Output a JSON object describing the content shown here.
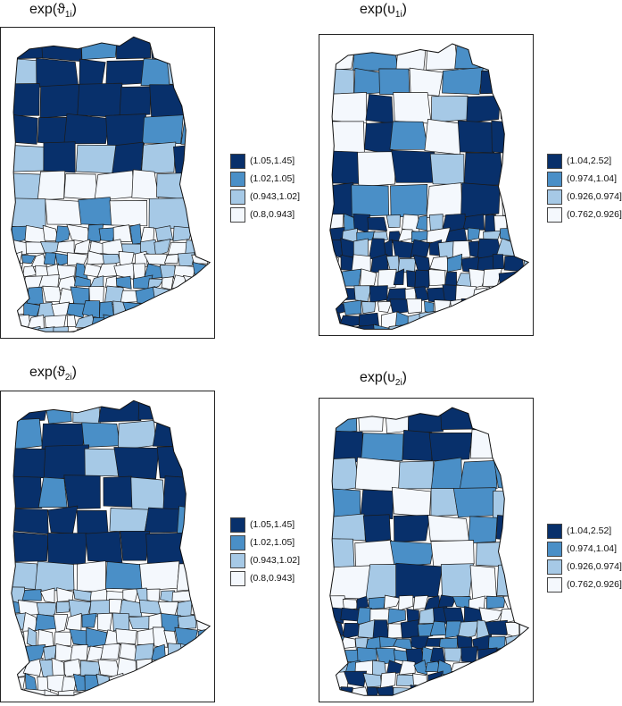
{
  "panels": [
    {
      "title": {
        "prefix": "exp(",
        "symbol": "ϑ",
        "subscript": "1i",
        "suffix": ")"
      },
      "legend": [
        {
          "label": "(1.05,1.45]",
          "color": "#08306b"
        },
        {
          "label": "(1.02,1.05]",
          "color": "#4a8fc7"
        },
        {
          "label": "(0.943,1.02]",
          "color": "#a6c9e6"
        },
        {
          "label": "(0.8,0.943]",
          "color": "#f4f8fd"
        }
      ]
    },
    {
      "title": {
        "prefix": "exp(",
        "symbol": "υ",
        "subscript": "1i",
        "suffix": ")"
      },
      "legend": [
        {
          "label": "(1.04,2.52]",
          "color": "#08306b"
        },
        {
          "label": "(0.974,1.04]",
          "color": "#4a8fc7"
        },
        {
          "label": "(0.926,0.974]",
          "color": "#a6c9e6"
        },
        {
          "label": "(0.762,0.926]",
          "color": "#f4f8fd"
        }
      ]
    },
    {
      "title": {
        "prefix": "exp(",
        "symbol": "ϑ",
        "subscript": "2i",
        "suffix": ")"
      },
      "legend": [
        {
          "label": "(1.05,1.45]",
          "color": "#08306b"
        },
        {
          "label": "(1.02,1.05]",
          "color": "#4a8fc7"
        },
        {
          "label": "(0.943,1.02]",
          "color": "#a6c9e6"
        },
        {
          "label": "(0.8,0.943]",
          "color": "#f4f8fd"
        }
      ]
    },
    {
      "title": {
        "prefix": "exp(",
        "symbol": "υ",
        "subscript": "2i",
        "suffix": ")"
      },
      "legend": [
        {
          "label": "(1.04,2.52]",
          "color": "#08306b"
        },
        {
          "label": "(0.974,1.04]",
          "color": "#4a8fc7"
        },
        {
          "label": "(0.926,0.974]",
          "color": "#a6c9e6"
        },
        {
          "label": "(0.762,0.926]",
          "color": "#f4f8fd"
        }
      ]
    }
  ]
}
